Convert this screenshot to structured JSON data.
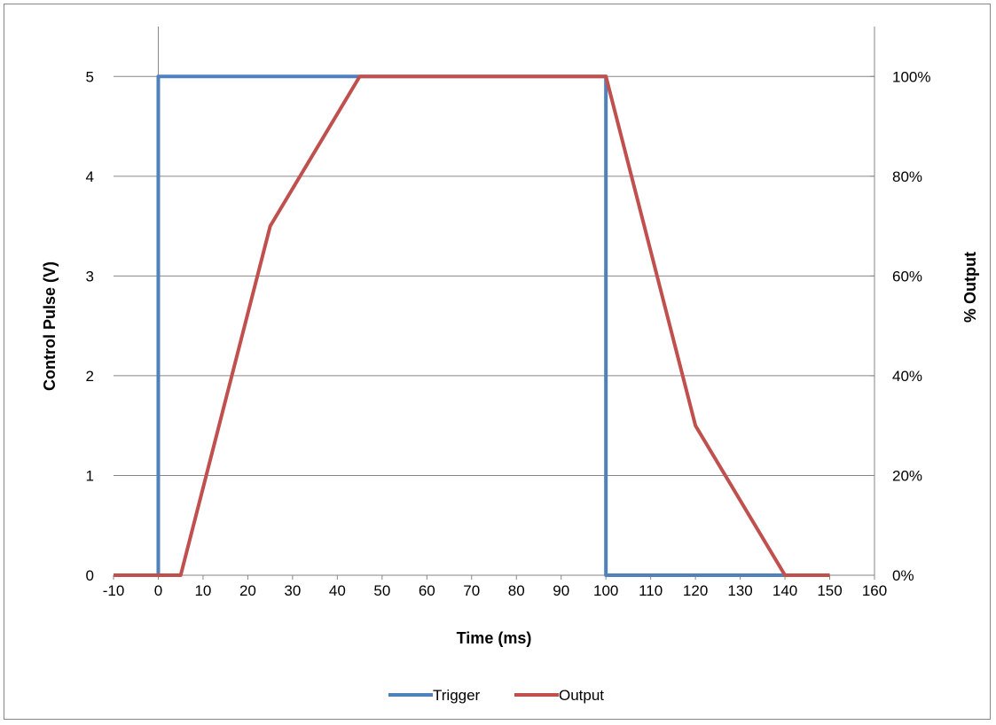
{
  "chart_data": {
    "type": "line",
    "title": "",
    "xlabel": "Time (ms)",
    "ylabel": "Control Pulse (V)",
    "y2label": "% Output",
    "xlim": [
      -10,
      160
    ],
    "ylim": [
      0,
      5.5
    ],
    "y2lim": [
      0,
      1.1
    ],
    "x_ticks": [
      -10,
      0,
      10,
      20,
      30,
      40,
      50,
      60,
      70,
      80,
      90,
      100,
      110,
      120,
      130,
      140,
      150,
      160
    ],
    "x_tick_labels": [
      "-10",
      "0",
      "10",
      "20",
      "30",
      "40",
      "50",
      "60",
      "70",
      "80",
      "90",
      "100",
      "110",
      "120",
      "130",
      "140",
      "150",
      "160"
    ],
    "y_ticks": [
      0,
      1,
      2,
      3,
      4,
      5
    ],
    "y_tick_labels": [
      "0",
      "1",
      "2",
      "3",
      "4",
      "5"
    ],
    "y2_ticks": [
      0,
      0.2,
      0.4,
      0.6,
      0.8,
      1.0
    ],
    "y2_tick_labels": [
      "0%",
      "20%",
      "40%",
      "60%",
      "80%",
      "100%"
    ],
    "grid": {
      "horizontal": true,
      "vertical": false
    },
    "legend": {
      "position": "bottom"
    },
    "series": [
      {
        "name": "Trigger",
        "axis": "left",
        "color": "#4F81BD",
        "x": [
          0,
          0,
          100,
          100,
          150
        ],
        "y": [
          0,
          5,
          5,
          0,
          0
        ]
      },
      {
        "name": "Output",
        "axis": "right",
        "color": "#C0504D",
        "x": [
          -10,
          5,
          25,
          45,
          100,
          120,
          140,
          150
        ],
        "y": [
          0,
          0,
          0.7,
          1.0,
          1.0,
          0.3,
          0,
          0
        ]
      }
    ]
  }
}
